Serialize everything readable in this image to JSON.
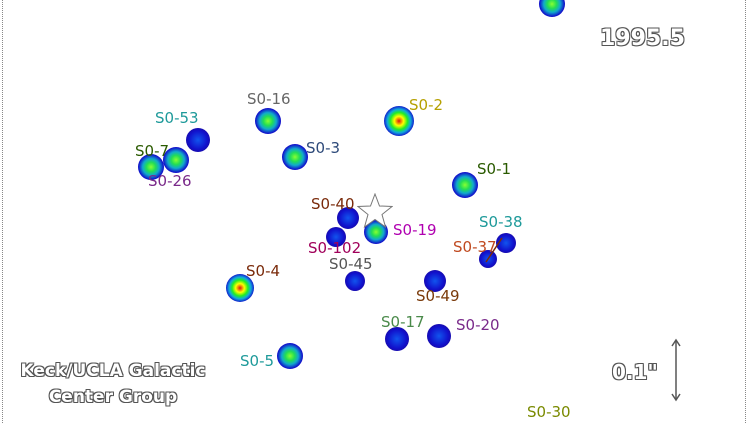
{
  "epoch": "1995.5",
  "credit": [
    "Keck/UCLA Galactic",
    "Center Group"
  ],
  "scale_label": "0.1\"",
  "central_marker": "star-outline-icon",
  "stars": [
    {
      "label": "S0-2",
      "color": "#b5a000"
    },
    {
      "label": "S0-16",
      "color": "#666666"
    },
    {
      "label": "S0-53",
      "color": "#1e9a9a"
    },
    {
      "label": "S0-7",
      "color": "#2a5a00"
    },
    {
      "label": "S0-26",
      "color": "#7a2a8a"
    },
    {
      "label": "S0-3",
      "color": "#2e4a7a"
    },
    {
      "label": "S0-1",
      "color": "#2a5a00"
    },
    {
      "label": "S0-38",
      "color": "#1e9a9a"
    },
    {
      "label": "S0-40",
      "color": "#7a2a0a"
    },
    {
      "label": "S0-19",
      "color": "#b000b0"
    },
    {
      "label": "S0-102",
      "color": "#a0005a"
    },
    {
      "label": "S0-37",
      "color": "#c04a20"
    },
    {
      "label": "S0-45",
      "color": "#555555"
    },
    {
      "label": "S0-4",
      "color": "#7a2a0a"
    },
    {
      "label": "S0-49",
      "color": "#7a3a0a"
    },
    {
      "label": "S0-17",
      "color": "#4a8a4a"
    },
    {
      "label": "S0-20",
      "color": "#7a2a8a"
    },
    {
      "label": "S0-5",
      "color": "#1e9a9a"
    },
    {
      "label": "S0-30",
      "color": "#7a8a00"
    }
  ]
}
